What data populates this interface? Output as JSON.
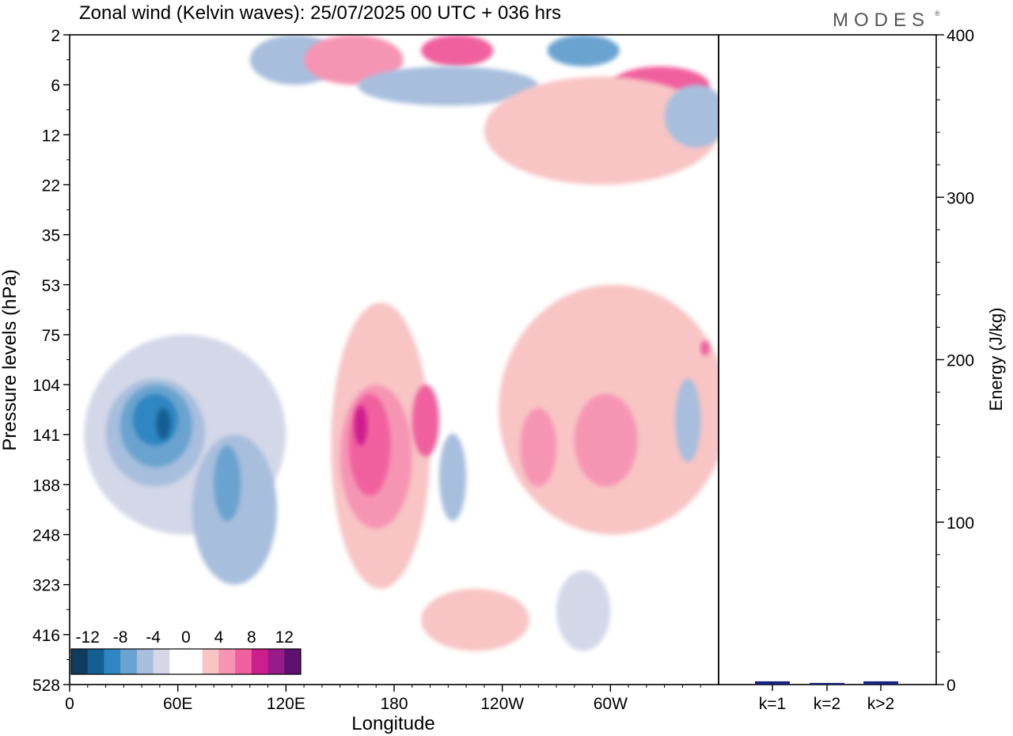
{
  "brand": "MODES",
  "chart_data": [
    {
      "type": "heatmap",
      "title": "Zonal wind (Kelvin waves):  25/07/2025  00 UTC  + 036 hrs",
      "xlabel": "Longitude",
      "ylabel": "Pressure levels (hPa)",
      "x_ticks": [
        "0",
        "60E",
        "120E",
        "180",
        "120W",
        "60W"
      ],
      "y_ticks": [
        "2",
        "6",
        "12",
        "22",
        "35",
        "53",
        "75",
        "104",
        "141",
        "188",
        "248",
        "323",
        "416",
        "528"
      ],
      "colorbar": {
        "labels": [
          "-12",
          "-8",
          "-4",
          "0",
          "4",
          "8",
          "12"
        ],
        "colors": [
          "#123c5e",
          "#145f92",
          "#2e86c2",
          "#6aa3cf",
          "#a7bedd",
          "#d3d7e8",
          "#ffffff",
          "#ffffff",
          "#f8c4c4",
          "#f694b3",
          "#f0609e",
          "#cc1f8e",
          "#971c8a",
          "#5e1170"
        ]
      },
      "features": [
        {
          "c": 5,
          "lon": [
            8,
            120
          ],
          "lev": [
            75,
            248
          ],
          "note": "broad weak easterly band"
        },
        {
          "c": 4,
          "lon": [
            20,
            75
          ],
          "lev": [
            100,
            190
          ]
        },
        {
          "c": 3,
          "lon": [
            28,
            68
          ],
          "lev": [
            104,
            170
          ]
        },
        {
          "c": 2,
          "lon": [
            35,
            60
          ],
          "lev": [
            110,
            150
          ]
        },
        {
          "c": 1,
          "lon": [
            48,
            56
          ],
          "lev": [
            120,
            145
          ]
        },
        {
          "c": 4,
          "lon": [
            68,
            115
          ],
          "lev": [
            141,
            323
          ]
        },
        {
          "c": 3,
          "lon": [
            80,
            95
          ],
          "lev": [
            150,
            230
          ]
        },
        {
          "c": 8,
          "lon": [
            145,
            200
          ],
          "lev": [
            60,
            330
          ]
        },
        {
          "c": 9,
          "lon": [
            150,
            190
          ],
          "lev": [
            104,
            240
          ]
        },
        {
          "c": 10,
          "lon": [
            155,
            178
          ],
          "lev": [
            110,
            200
          ]
        },
        {
          "c": 11,
          "lon": [
            158,
            165
          ],
          "lev": [
            118,
            150
          ]
        },
        {
          "c": 10,
          "lon": [
            190,
            205
          ],
          "lev": [
            104,
            160
          ]
        },
        {
          "c": 4,
          "lon": [
            205,
            220
          ],
          "lev": [
            140,
            230
          ]
        },
        {
          "c": 8,
          "lon": [
            238,
            365
          ],
          "lev": [
            53,
            248
          ]
        },
        {
          "c": 9,
          "lon": [
            250,
            270
          ],
          "lev": [
            120,
            190
          ]
        },
        {
          "c": 9,
          "lon": [
            280,
            315
          ],
          "lev": [
            110,
            190
          ]
        },
        {
          "c": 10,
          "lon": [
            350,
            355
          ],
          "lev": [
            78,
            86
          ]
        },
        {
          "c": 4,
          "lon": [
            336,
            350
          ],
          "lev": [
            100,
            165
          ]
        },
        {
          "c": 5,
          "lon": [
            270,
            300
          ],
          "lev": [
            300,
            450
          ]
        },
        {
          "c": 8,
          "lon": [
            195,
            255
          ],
          "lev": [
            330,
            450
          ]
        },
        {
          "c": 4,
          "lon": [
            100,
            150
          ],
          "lev": [
            2,
            6
          ]
        },
        {
          "c": 9,
          "lon": [
            130,
            185
          ],
          "lev": [
            2,
            6
          ]
        },
        {
          "c": 10,
          "lon": [
            195,
            235
          ],
          "lev": [
            2,
            4
          ]
        },
        {
          "c": 3,
          "lon": [
            265,
            305
          ],
          "lev": [
            2,
            4
          ]
        },
        {
          "c": 4,
          "lon": [
            160,
            260
          ],
          "lev": [
            4,
            8
          ]
        },
        {
          "c": 10,
          "lon": [
            300,
            355
          ],
          "lev": [
            4,
            8
          ]
        },
        {
          "c": 8,
          "lon": [
            230,
            360
          ],
          "lev": [
            5,
            22
          ]
        },
        {
          "c": 4,
          "lon": [
            330,
            365
          ],
          "lev": [
            6,
            14
          ]
        }
      ]
    },
    {
      "type": "bar",
      "ylabel": "Energy (J/kg)",
      "categories": [
        "k=1",
        "k=2",
        "k>2"
      ],
      "values": [
        2,
        1,
        2
      ],
      "ylim": [
        0,
        400
      ],
      "y_ticks": [
        "0",
        "100",
        "200",
        "300",
        "400"
      ],
      "bar_color": "#1a2280"
    }
  ]
}
